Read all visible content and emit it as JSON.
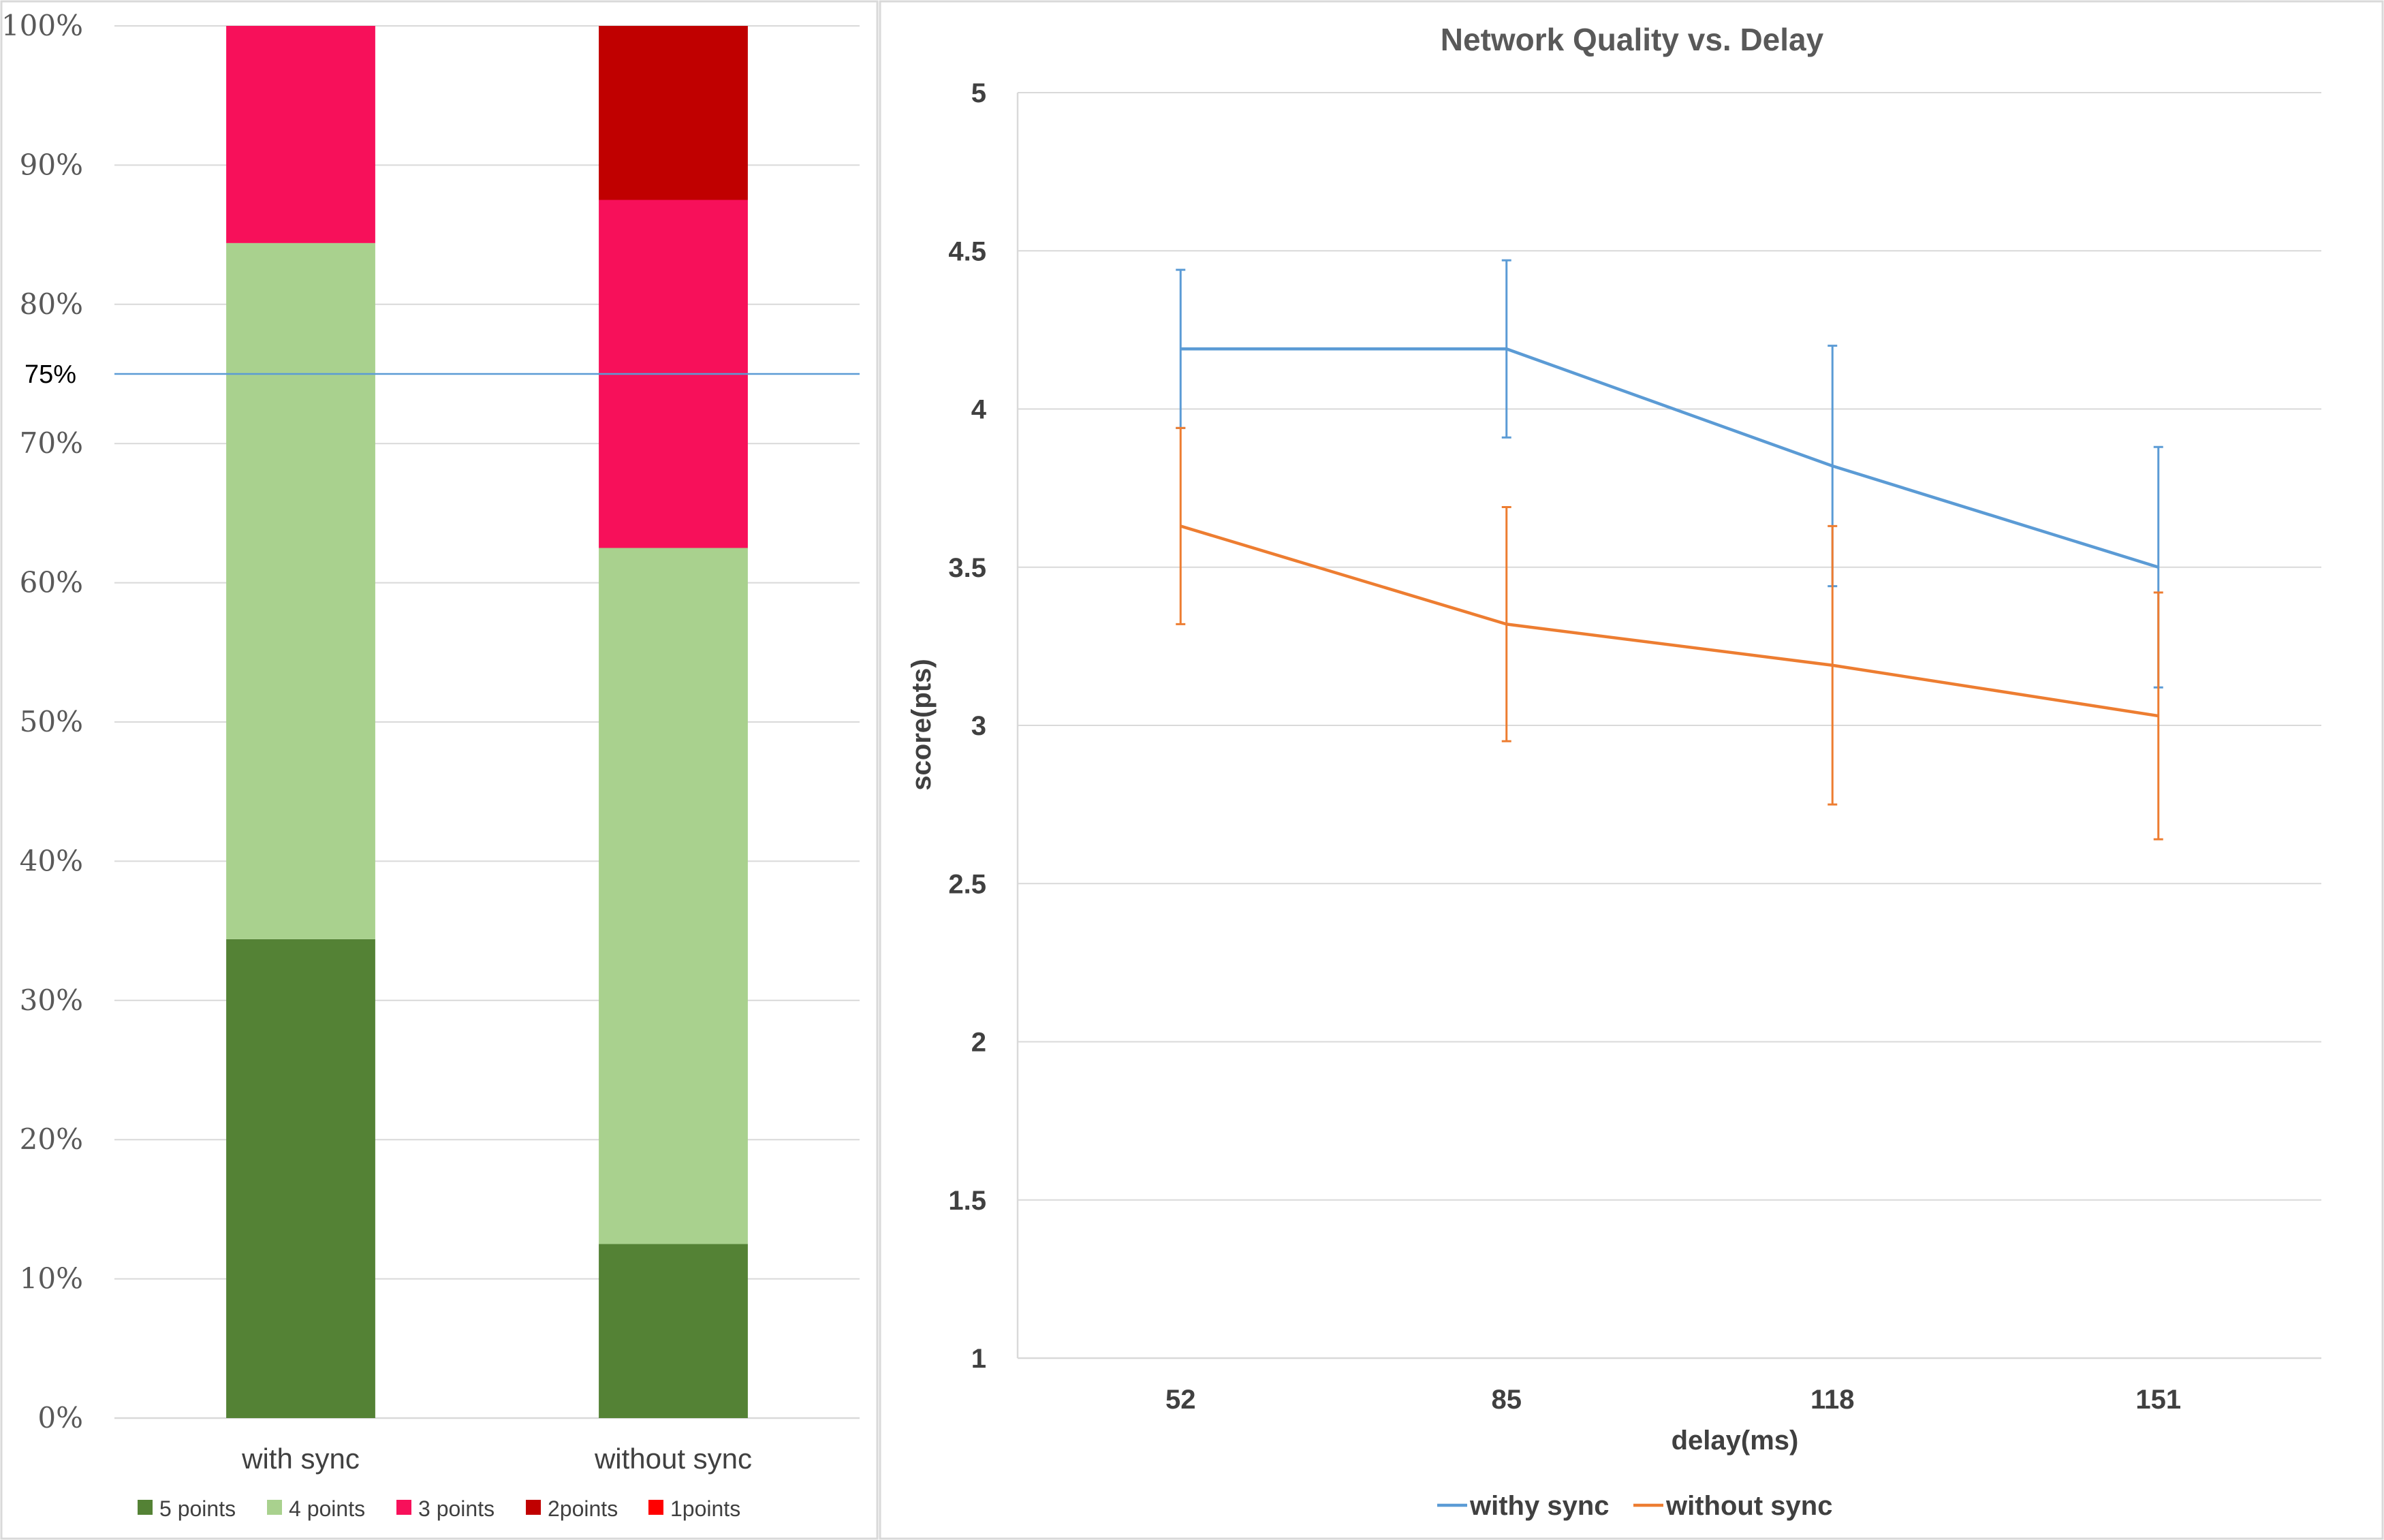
{
  "chart_data": [
    {
      "type": "bar",
      "stacked": true,
      "title": "",
      "categories": [
        "with sync",
        "without sync"
      ],
      "ylim": [
        0,
        100
      ],
      "y_ticks": [
        "0%",
        "10%",
        "20%",
        "30%",
        "40%",
        "50%",
        "60%",
        "70%",
        "80%",
        "90%",
        "100%"
      ],
      "series": [
        {
          "name": "5 points",
          "color": "#548235",
          "values": [
            34.4,
            12.5
          ]
        },
        {
          "name": "4 points",
          "color": "#a9d18e",
          "values": [
            50.0,
            50.0
          ]
        },
        {
          "name": "3 points",
          "color": "#f7105a",
          "values": [
            15.6,
            25.0
          ]
        },
        {
          "name": "2points",
          "color": "#c00000",
          "values": [
            0,
            12.5
          ]
        },
        {
          "name": "1points",
          "color": "#ff0000",
          "values": [
            0,
            0
          ]
        }
      ],
      "reference_line": {
        "value": 75,
        "label": "75%",
        "color": "#5b9bd5"
      },
      "grid": true,
      "legend_position": "bottom"
    },
    {
      "type": "line",
      "title": "Network  Quality  vs. Delay",
      "xlabel": "delay(ms)",
      "ylabel": "score(pts)",
      "categories": [
        "52",
        "85",
        "118",
        "151"
      ],
      "ylim": [
        1,
        5
      ],
      "y_ticks": [
        "1",
        "1.5",
        "2",
        "2.5",
        "3",
        "3.5",
        "4",
        "4.5",
        "5"
      ],
      "series": [
        {
          "name": "withy sync",
          "color": "#5b9bd5",
          "values": [
            4.19,
            4.19,
            3.82,
            3.5
          ],
          "error": [
            0.25,
            0.28,
            0.38,
            0.38
          ]
        },
        {
          "name": "without sync",
          "color": "#ed7d31",
          "values": [
            3.63,
            3.32,
            3.19,
            3.03
          ],
          "error": [
            0.31,
            0.37,
            0.44,
            0.39
          ]
        }
      ],
      "grid": true,
      "legend_position": "bottom"
    }
  ]
}
